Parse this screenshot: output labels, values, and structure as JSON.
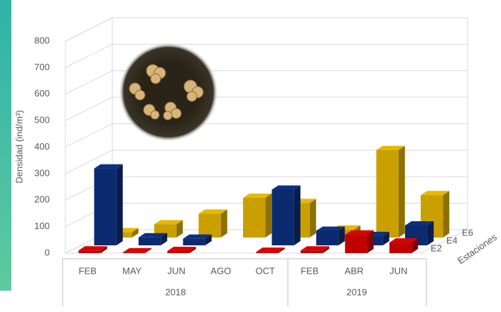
{
  "chart_data": {
    "type": "bar3d",
    "y_label": "Densidad (ind/m³)",
    "z_label": "Estaciones",
    "categories": [
      "FEB",
      "MAY",
      "JUN",
      "AGO",
      "OCT",
      "FEB",
      "ABR",
      "JUN"
    ],
    "groups": [
      "2018",
      "2019"
    ],
    "series": [
      {
        "name": "E2",
        "color": "#c00000",
        "values": [
          10,
          3,
          8,
          null,
          5,
          10,
          70,
          40
        ]
      },
      {
        "name": "E4",
        "color": "#0b2a6f",
        "values": [
          290,
          30,
          25,
          null,
          210,
          55,
          35,
          75
        ]
      },
      {
        "name": "E6",
        "color": "#c9a000",
        "values": [
          20,
          50,
          90,
          150,
          130,
          30,
          330,
          160
        ]
      }
    ],
    "ylim": [
      0,
      800
    ],
    "yticks": [
      0,
      100,
      200,
      300,
      400,
      500,
      600,
      700,
      800
    ],
    "grid": true
  }
}
